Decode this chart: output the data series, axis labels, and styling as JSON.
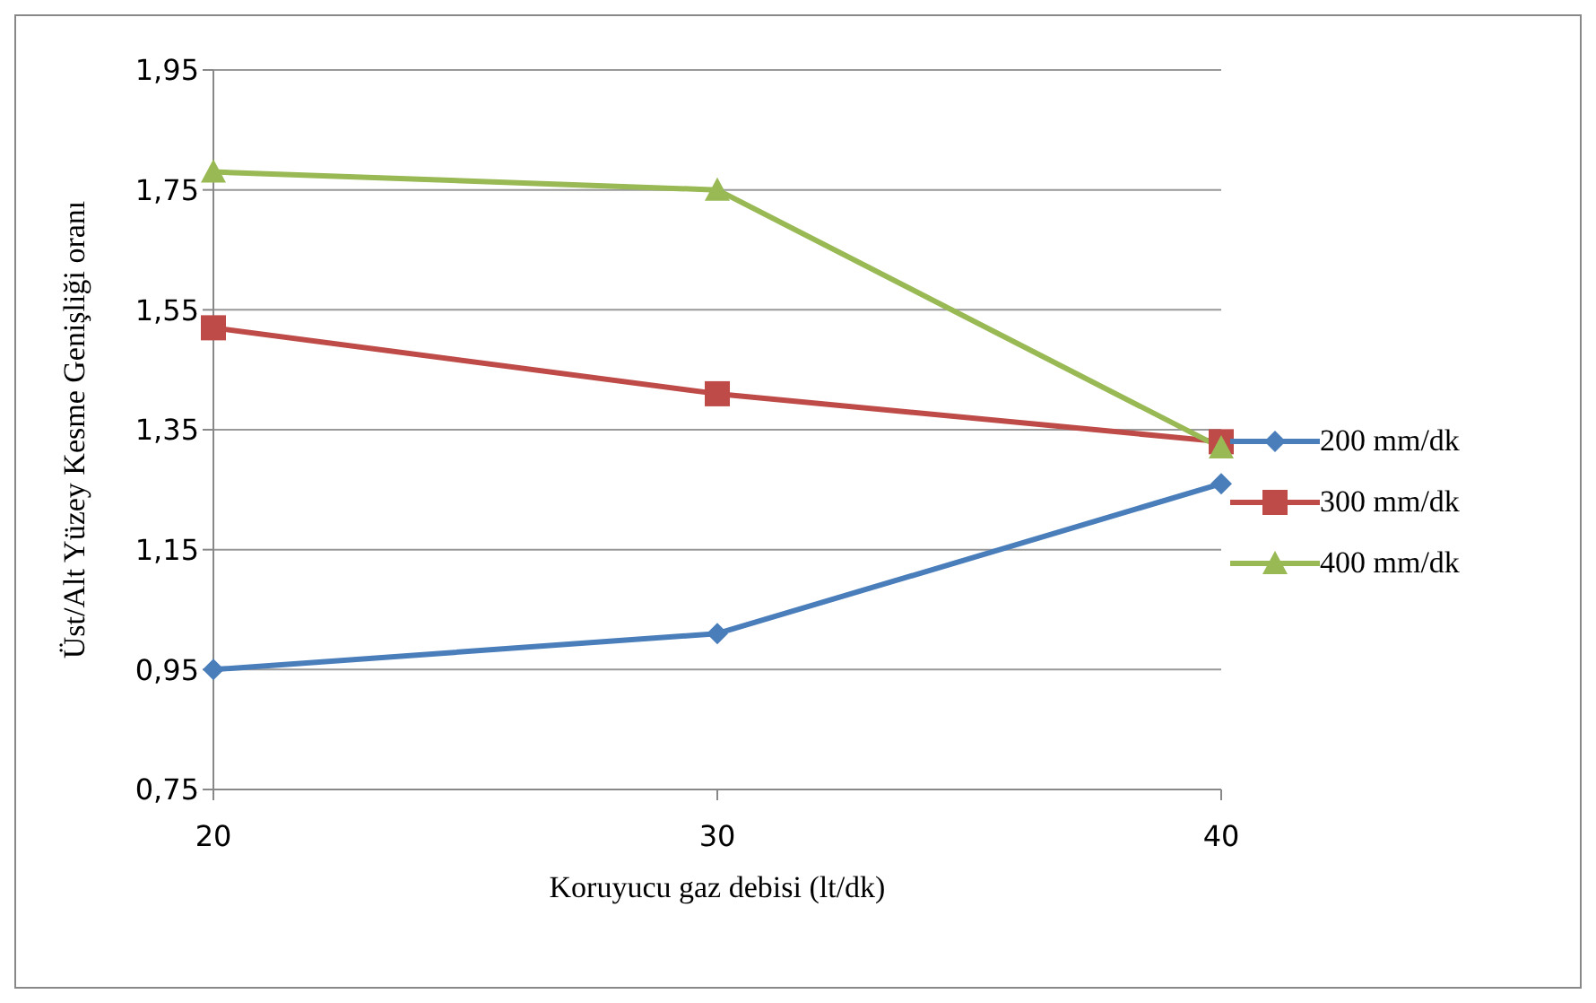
{
  "chart_data": {
    "type": "line",
    "xlabel": "Koruyucu gaz debisi  (lt/dk)",
    "ylabel": "Üst/Alt Yüzey Kesme Genişliği  oranı",
    "categories": [
      "20",
      "30",
      "40"
    ],
    "series": [
      {
        "name": "200 mm/dk",
        "color": "#4a7ebb",
        "values": [
          0.95,
          1.01,
          1.26
        ],
        "marker": "diamond"
      },
      {
        "name": "300 mm/dk",
        "color": "#be4b48",
        "values": [
          1.52,
          1.41,
          1.33
        ],
        "marker": "square"
      },
      {
        "name": "400 mm/dk",
        "color": "#98b954",
        "values": [
          1.78,
          1.75,
          1.32
        ],
        "marker": "triangle"
      }
    ],
    "ylim": [
      0.75,
      1.95
    ],
    "yticks": [
      {
        "value": 0.75,
        "label": "0,75"
      },
      {
        "value": 0.95,
        "label": "0,95"
      },
      {
        "value": 1.15,
        "label": "1,15"
      },
      {
        "value": 1.35,
        "label": "1,35"
      },
      {
        "value": 1.55,
        "label": "1,55"
      },
      {
        "value": 1.75,
        "label": "1,75"
      },
      {
        "value": 1.95,
        "label": "1,95"
      }
    ],
    "grid": "y",
    "legend": "right",
    "line_style": "solid"
  }
}
